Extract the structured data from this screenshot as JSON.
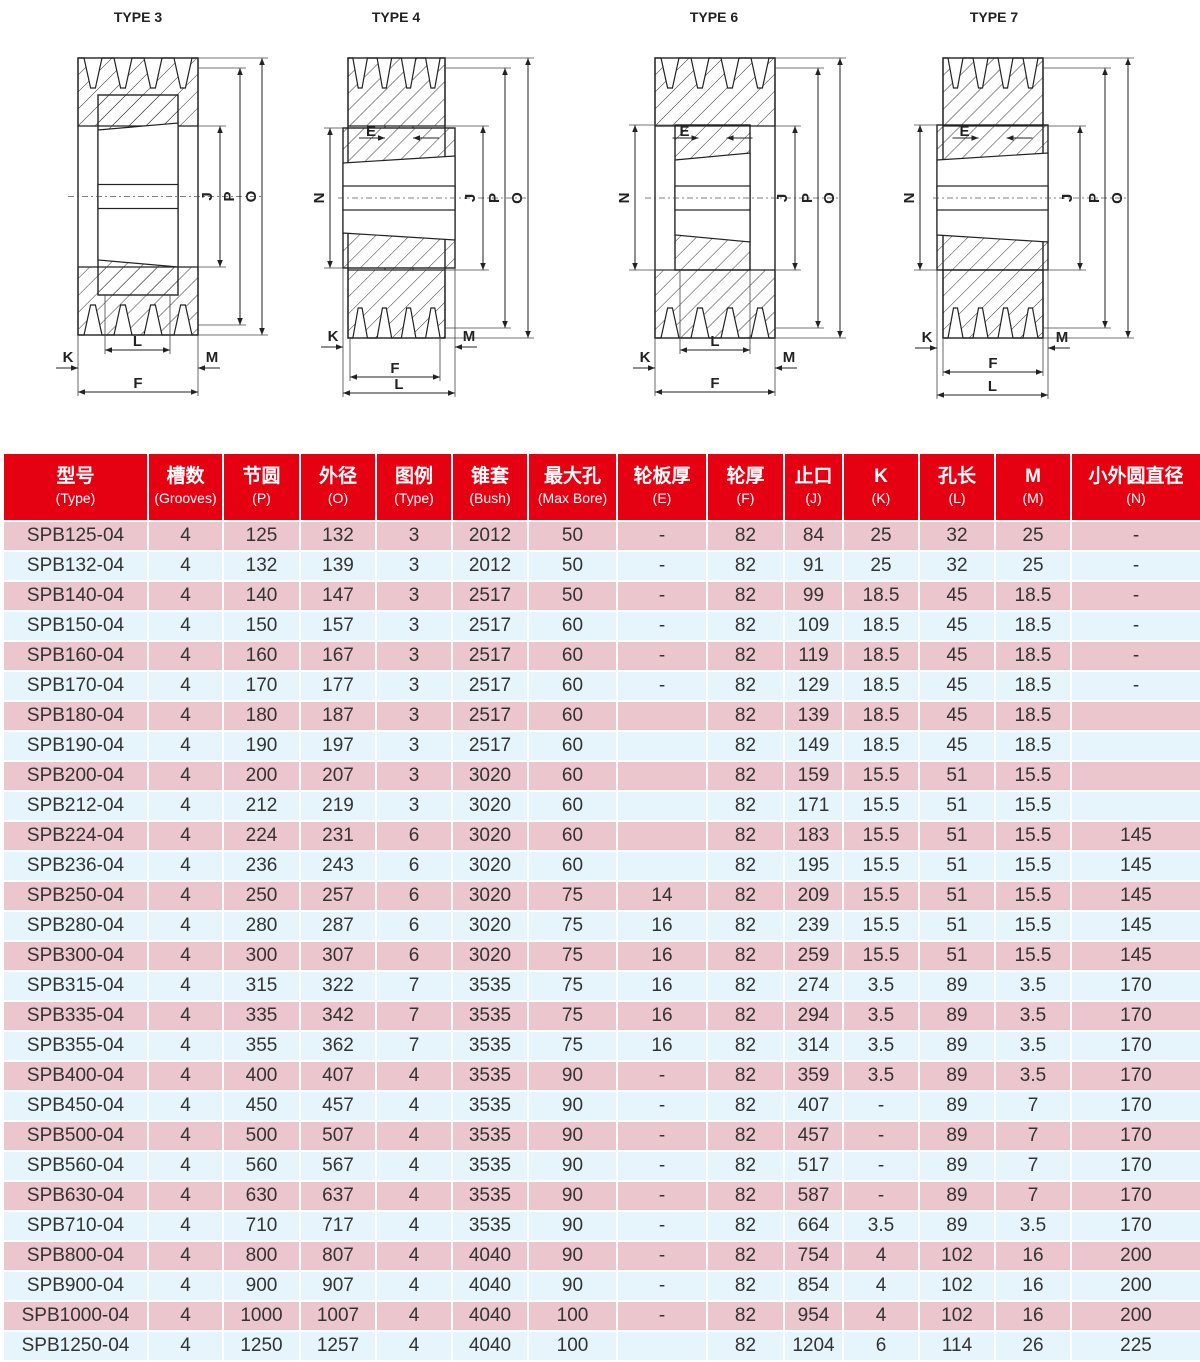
{
  "drawings": [
    {
      "title": "TYPE 3",
      "labels": {
        "J": "J",
        "P": "P",
        "O": "O",
        "L": "L",
        "K": "K",
        "M": "M",
        "F": "F"
      }
    },
    {
      "title": "TYPE 4",
      "labels": {
        "E": "E",
        "N": "N",
        "J": "J",
        "P": "P",
        "O": "O",
        "K": "K",
        "M": "M",
        "F": "F",
        "L": "L"
      }
    },
    {
      "title": "TYPE 6",
      "labels": {
        "E": "E",
        "N": "N",
        "J": "J",
        "P": "P",
        "O": "O",
        "L": "L",
        "K": "K",
        "M": "M",
        "F": "F"
      }
    },
    {
      "title": "TYPE 7",
      "labels": {
        "E": "E",
        "N": "N",
        "J": "J",
        "P": "P",
        "O": "O",
        "K": "K",
        "M": "M",
        "F": "F",
        "L": "L"
      }
    }
  ],
  "colors": {
    "header_bg": "#e50012",
    "row_odd": "#ebc6cc",
    "row_even": "#e6f4fb"
  },
  "table": {
    "columns": [
      {
        "zh": "型号",
        "en": "(Type)"
      },
      {
        "zh": "槽数",
        "en": "(Grooves)"
      },
      {
        "zh": "节圆",
        "en": "(P)"
      },
      {
        "zh": "外径",
        "en": "(O)"
      },
      {
        "zh": "图例",
        "en": "(Type)"
      },
      {
        "zh": "锥套",
        "en": "(Bush)"
      },
      {
        "zh": "最大孔",
        "en": "(Max Bore)"
      },
      {
        "zh": "轮板厚",
        "en": "(E)"
      },
      {
        "zh": "轮厚",
        "en": "(F)"
      },
      {
        "zh": "止口",
        "en": "(J)"
      },
      {
        "zh": "K",
        "en": "(K)"
      },
      {
        "zh": "孔长",
        "en": "(L)"
      },
      {
        "zh": "M",
        "en": "(M)"
      },
      {
        "zh": "小外圆直径",
        "en": "(N)"
      }
    ],
    "rows": [
      [
        "SPB125-04",
        "4",
        "125",
        "132",
        "3",
        "2012",
        "50",
        "-",
        "82",
        "84",
        "25",
        "32",
        "25",
        "-"
      ],
      [
        "SPB132-04",
        "4",
        "132",
        "139",
        "3",
        "2012",
        "50",
        "-",
        "82",
        "91",
        "25",
        "32",
        "25",
        "-"
      ],
      [
        "SPB140-04",
        "4",
        "140",
        "147",
        "3",
        "2517",
        "50",
        "-",
        "82",
        "99",
        "18.5",
        "45",
        "18.5",
        "-"
      ],
      [
        "SPB150-04",
        "4",
        "150",
        "157",
        "3",
        "2517",
        "60",
        "-",
        "82",
        "109",
        "18.5",
        "45",
        "18.5",
        "-"
      ],
      [
        "SPB160-04",
        "4",
        "160",
        "167",
        "3",
        "2517",
        "60",
        "-",
        "82",
        "119",
        "18.5",
        "45",
        "18.5",
        "-"
      ],
      [
        "SPB170-04",
        "4",
        "170",
        "177",
        "3",
        "2517",
        "60",
        "-",
        "82",
        "129",
        "18.5",
        "45",
        "18.5",
        "-"
      ],
      [
        "SPB180-04",
        "4",
        "180",
        "187",
        "3",
        "2517",
        "60",
        "",
        "82",
        "139",
        "18.5",
        "45",
        "18.5",
        ""
      ],
      [
        "SPB190-04",
        "4",
        "190",
        "197",
        "3",
        "2517",
        "60",
        "",
        "82",
        "149",
        "18.5",
        "45",
        "18.5",
        ""
      ],
      [
        "SPB200-04",
        "4",
        "200",
        "207",
        "3",
        "3020",
        "60",
        "",
        "82",
        "159",
        "15.5",
        "51",
        "15.5",
        ""
      ],
      [
        "SPB212-04",
        "4",
        "212",
        "219",
        "3",
        "3020",
        "60",
        "",
        "82",
        "171",
        "15.5",
        "51",
        "15.5",
        ""
      ],
      [
        "SPB224-04",
        "4",
        "224",
        "231",
        "6",
        "3020",
        "60",
        "",
        "82",
        "183",
        "15.5",
        "51",
        "15.5",
        "145"
      ],
      [
        "SPB236-04",
        "4",
        "236",
        "243",
        "6",
        "3020",
        "60",
        "",
        "82",
        "195",
        "15.5",
        "51",
        "15.5",
        "145"
      ],
      [
        "SPB250-04",
        "4",
        "250",
        "257",
        "6",
        "3020",
        "75",
        "14",
        "82",
        "209",
        "15.5",
        "51",
        "15.5",
        "145"
      ],
      [
        "SPB280-04",
        "4",
        "280",
        "287",
        "6",
        "3020",
        "75",
        "16",
        "82",
        "239",
        "15.5",
        "51",
        "15.5",
        "145"
      ],
      [
        "SPB300-04",
        "4",
        "300",
        "307",
        "6",
        "3020",
        "75",
        "16",
        "82",
        "259",
        "15.5",
        "51",
        "15.5",
        "145"
      ],
      [
        "SPB315-04",
        "4",
        "315",
        "322",
        "7",
        "3535",
        "75",
        "16",
        "82",
        "274",
        "3.5",
        "89",
        "3.5",
        "170"
      ],
      [
        "SPB335-04",
        "4",
        "335",
        "342",
        "7",
        "3535",
        "75",
        "16",
        "82",
        "294",
        "3.5",
        "89",
        "3.5",
        "170"
      ],
      [
        "SPB355-04",
        "4",
        "355",
        "362",
        "7",
        "3535",
        "75",
        "16",
        "82",
        "314",
        "3.5",
        "89",
        "3.5",
        "170"
      ],
      [
        "SPB400-04",
        "4",
        "400",
        "407",
        "4",
        "3535",
        "90",
        "-",
        "82",
        "359",
        "3.5",
        "89",
        "3.5",
        "170"
      ],
      [
        "SPB450-04",
        "4",
        "450",
        "457",
        "4",
        "3535",
        "90",
        "-",
        "82",
        "407",
        "-",
        "89",
        "7",
        "170"
      ],
      [
        "SPB500-04",
        "4",
        "500",
        "507",
        "4",
        "3535",
        "90",
        "-",
        "82",
        "457",
        "-",
        "89",
        "7",
        "170"
      ],
      [
        "SPB560-04",
        "4",
        "560",
        "567",
        "4",
        "3535",
        "90",
        "-",
        "82",
        "517",
        "-",
        "89",
        "7",
        "170"
      ],
      [
        "SPB630-04",
        "4",
        "630",
        "637",
        "4",
        "3535",
        "90",
        "-",
        "82",
        "587",
        "-",
        "89",
        "7",
        "170"
      ],
      [
        "SPB710-04",
        "4",
        "710",
        "717",
        "4",
        "3535",
        "90",
        "-",
        "82",
        "664",
        "3.5",
        "89",
        "3.5",
        "170"
      ],
      [
        "SPB800-04",
        "4",
        "800",
        "807",
        "4",
        "4040",
        "90",
        "-",
        "82",
        "754",
        "4",
        "102",
        "16",
        "200"
      ],
      [
        "SPB900-04",
        "4",
        "900",
        "907",
        "4",
        "4040",
        "90",
        "-",
        "82",
        "854",
        "4",
        "102",
        "16",
        "200"
      ],
      [
        "SPB1000-04",
        "4",
        "1000",
        "1007",
        "4",
        "4040",
        "100",
        "-",
        "82",
        "954",
        "4",
        "102",
        "16",
        "200"
      ],
      [
        "SPB1250-04",
        "4",
        "1250",
        "1257",
        "4",
        "4040",
        "100",
        "",
        "82",
        "1204",
        "6",
        "114",
        "26",
        "225"
      ]
    ]
  }
}
